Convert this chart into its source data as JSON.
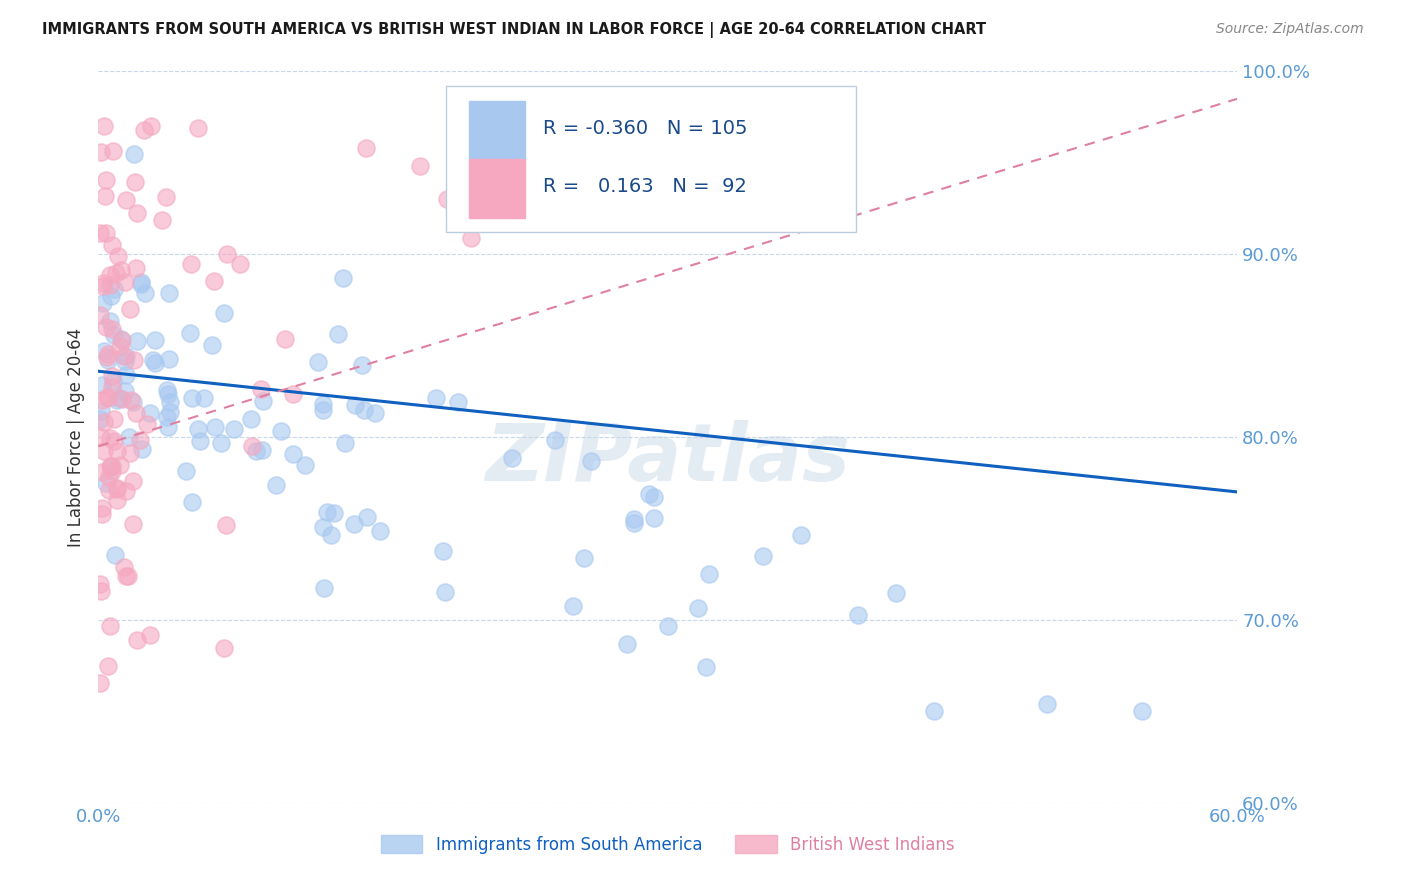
{
  "title": "IMMIGRANTS FROM SOUTH AMERICA VS BRITISH WEST INDIAN IN LABOR FORCE | AGE 20-64 CORRELATION CHART",
  "source": "Source: ZipAtlas.com",
  "ylabel": "In Labor Force | Age 20-64",
  "watermark": "ZIPatlas",
  "xlim": [
    0.0,
    0.6
  ],
  "ylim": [
    0.6,
    1.0
  ],
  "legend1_label": "Immigrants from South America",
  "legend2_label": "British West Indians",
  "R1": "-0.360",
  "N1": "105",
  "R2": "0.163",
  "N2": "92",
  "color_blue": "#a8c8f0",
  "color_pink": "#f5a8c0",
  "color_line_blue": "#1060c0",
  "color_line_pink": "#e080a0",
  "legend_text_color": "#1a4a8a",
  "title_color": "#1a1a1a",
  "axis_label_color": "#333333",
  "tick_color": "#5b9bd5",
  "grid_color": "#c8d8e8",
  "background_color": "#ffffff",
  "source_color": "#888888"
}
